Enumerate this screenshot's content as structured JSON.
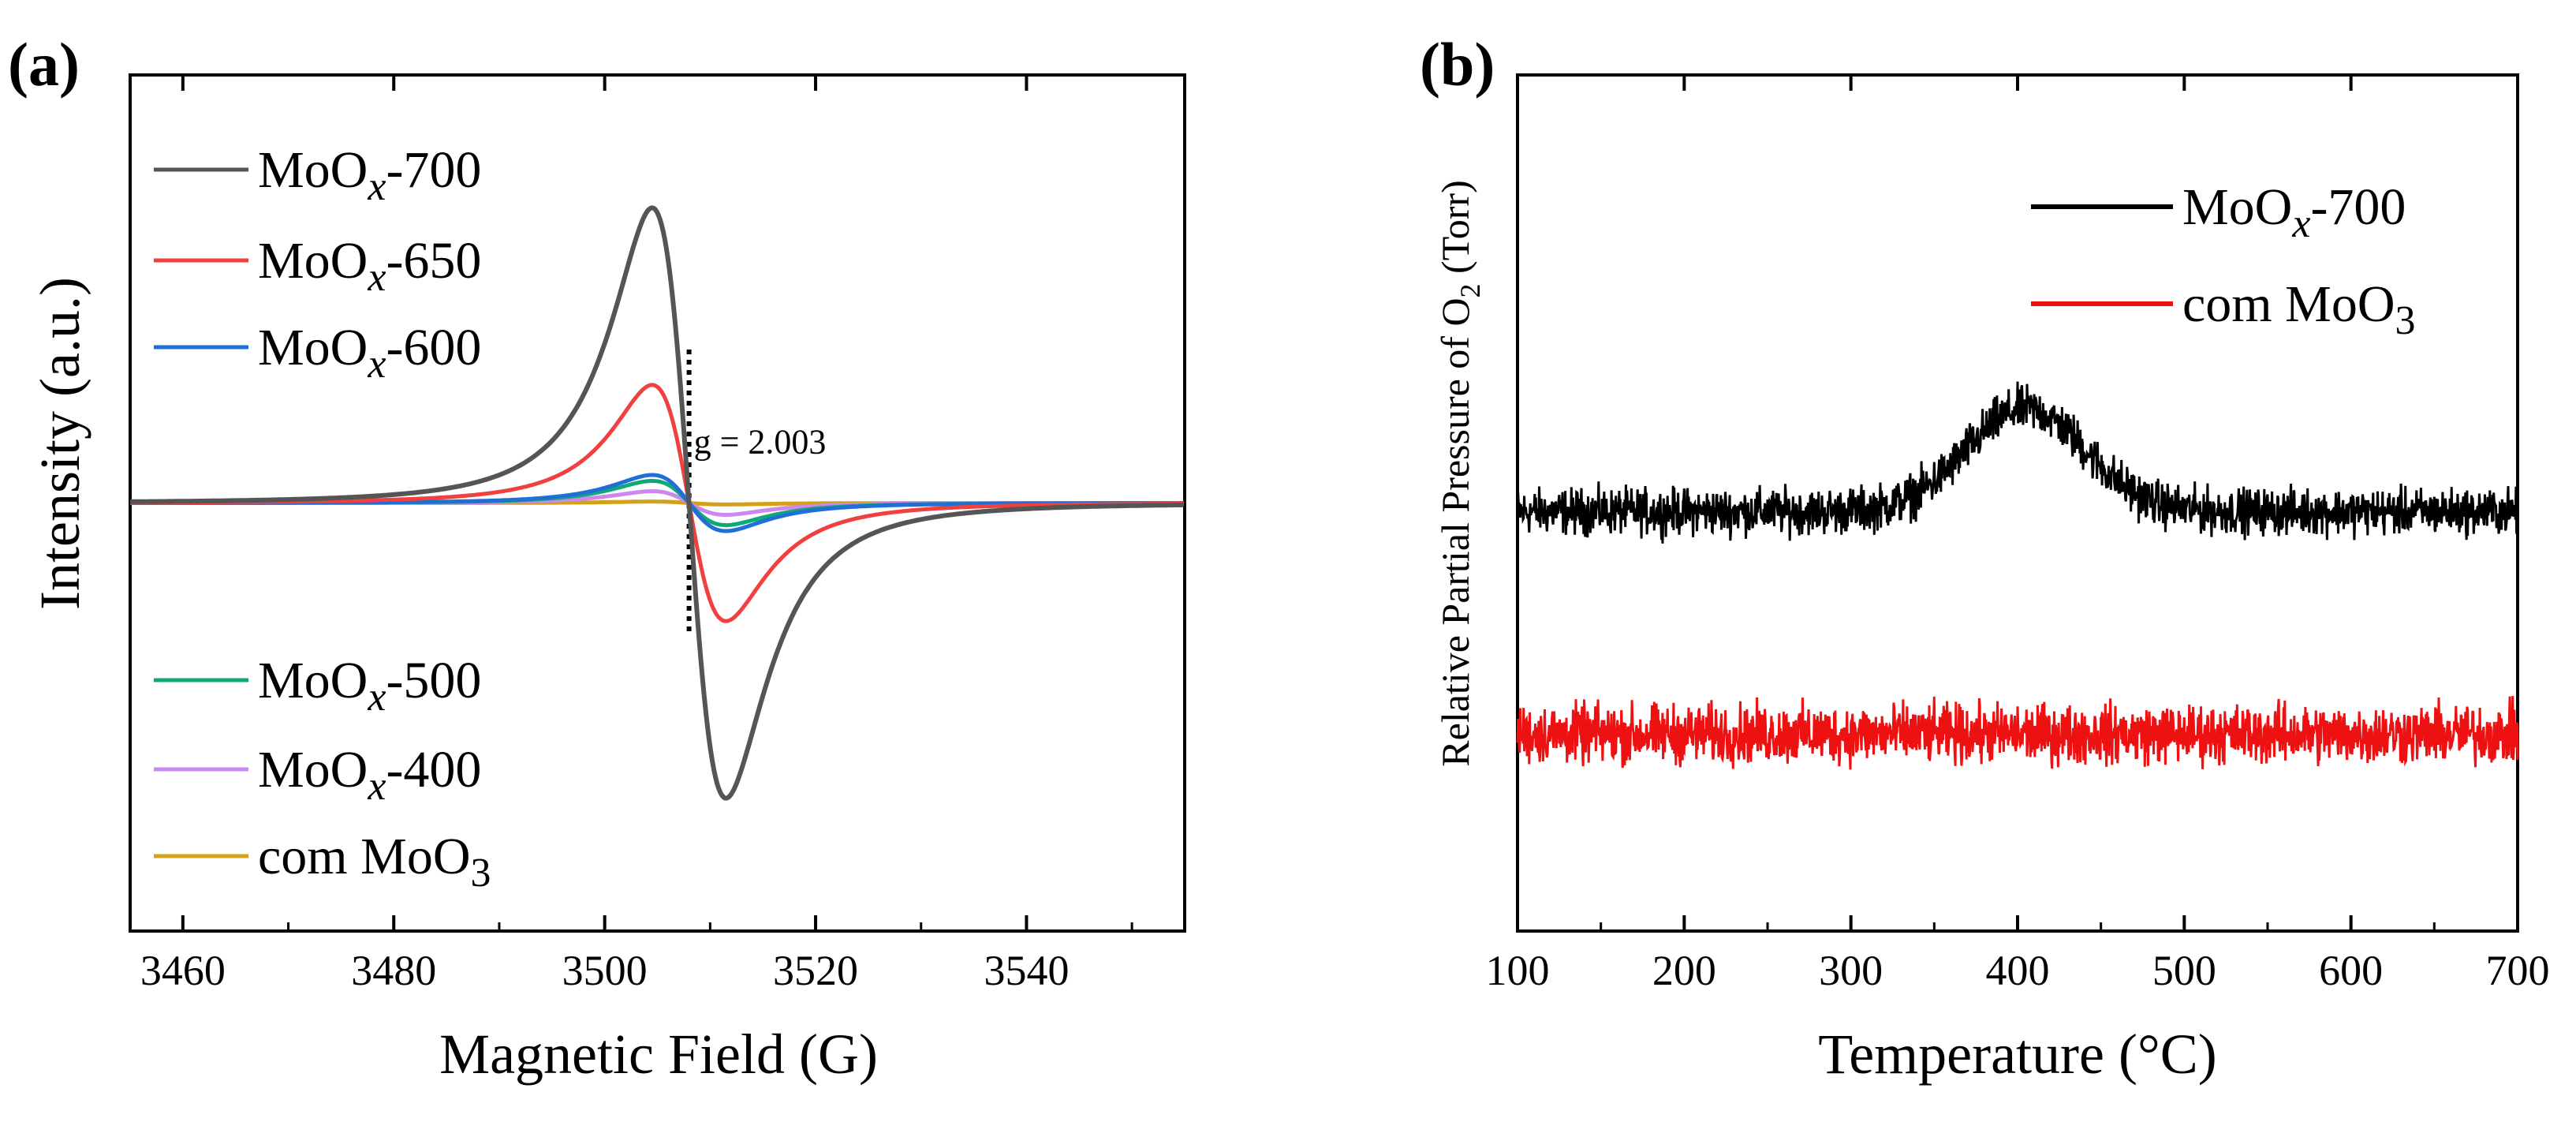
{
  "colors": {
    "MoOx-700": "#555555",
    "MoOx-650": "#f04040",
    "MoOx-600": "#1f6fd6",
    "MoOx-500": "#10a878",
    "MoOx-400": "#cc88ee",
    "com MoO3": "#d4a017",
    "tpd_MoOx-700": "#000000",
    "tpd_com MoO3": "#ee1111"
  },
  "chart_data": [
    {
      "type": "line",
      "panel_label": "(a)",
      "title": "",
      "xlabel": "Magnetic Field (G)",
      "ylabel": "Intensity (a.u.)",
      "xlim": [
        3455,
        3555
      ],
      "ylim": [
        -1.45,
        1.45
      ],
      "xticks": [
        3460,
        3480,
        3500,
        3520,
        3540
      ],
      "yticks_shown": false,
      "legend_location": "left",
      "annotation": {
        "text": "g = 2.003",
        "x": 3508,
        "y": 0.2
      },
      "series": [
        {
          "name": "MoOx-700",
          "legend_main": "MoO",
          "legend_sub": "x",
          "legend_suffix": "-700",
          "center": 3508,
          "half_width": 3.5,
          "peak": 1.0
        },
        {
          "name": "MoOx-650",
          "legend_main": "MoO",
          "legend_sub": "x",
          "legend_suffix": "-650",
          "center": 3508,
          "half_width": 3.5,
          "peak": 0.4
        },
        {
          "name": "MoOx-600",
          "legend_main": "MoO",
          "legend_sub": "x",
          "legend_suffix": "-600",
          "center": 3508,
          "half_width": 3.5,
          "peak": 0.095
        },
        {
          "name": "MoOx-500",
          "legend_main": "MoO",
          "legend_sub": "x",
          "legend_suffix": "-500",
          "center": 3508,
          "half_width": 3.5,
          "peak": 0.075
        },
        {
          "name": "MoOx-400",
          "legend_main": "MoO",
          "legend_sub": "x",
          "legend_suffix": "-400",
          "center": 3508,
          "half_width": 3.5,
          "peak": 0.04
        },
        {
          "name": "com MoO3",
          "legend_main": "com MoO",
          "legend_sub": "3",
          "legend_suffix": "",
          "center": 3508,
          "half_width": 3.5,
          "peak": 0.005
        }
      ]
    },
    {
      "type": "line",
      "panel_label": "(b)",
      "title": "",
      "xlabel": "Temperature (°C)",
      "ylabel": {
        "main": "Relative Partial Pressure of O",
        "sub": "2",
        "suffix": " (Torr)"
      },
      "xlim": [
        100,
        700
      ],
      "ylim": [
        0,
        10
      ],
      "xticks": [
        100,
        200,
        300,
        400,
        500,
        600,
        700
      ],
      "yticks_shown": false,
      "legend_location": "top-right",
      "series": [
        {
          "name": "MoOx-700",
          "legend_main": "MoO",
          "legend_sub": "x",
          "legend_suffix": "-700",
          "baseline": 4.9,
          "peak_center": 405,
          "peak_height": 1.2,
          "peak_width": 50,
          "noise": 0.35
        },
        {
          "name": "com MoO3",
          "legend_main": "com MoO",
          "legend_sub": "3",
          "legend_suffix": "",
          "baseline": 2.3,
          "noise": 0.45
        }
      ]
    }
  ]
}
